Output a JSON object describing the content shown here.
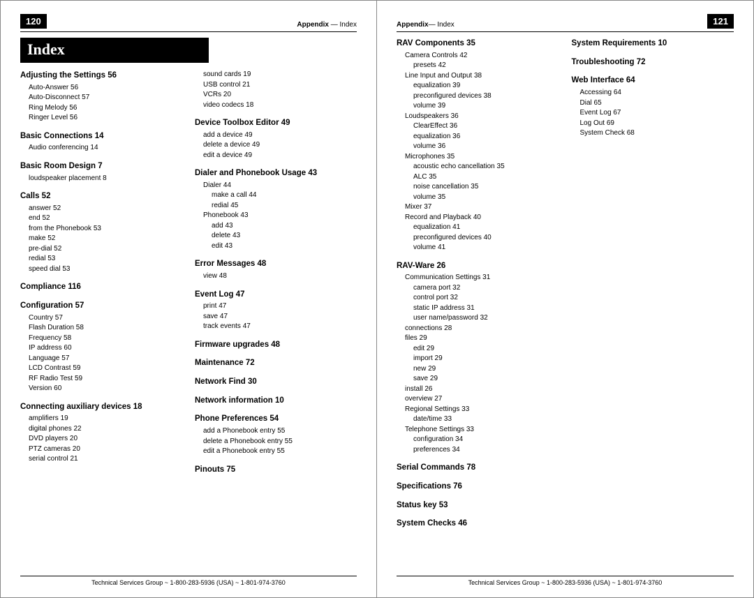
{
  "left": {
    "pageNum": "120",
    "appendix": "Appendix — Index",
    "indexHeader": "Index",
    "col1": [
      {
        "t": "topic",
        "v": "Adjusting the Settings 56"
      },
      {
        "t": "sub",
        "v": "Auto-Answer 56"
      },
      {
        "t": "sub",
        "v": "Auto-Disconnect 57"
      },
      {
        "t": "sub",
        "v": "Ring Melody 56"
      },
      {
        "t": "sub",
        "v": "Ringer Level 56"
      },
      {
        "t": "topic",
        "v": "Basic Connections 14"
      },
      {
        "t": "sub",
        "v": "Audio conferencing 14"
      },
      {
        "t": "topic",
        "v": "Basic Room Design 7"
      },
      {
        "t": "sub",
        "v": "loudspeaker placement 8"
      },
      {
        "t": "topic",
        "v": "Calls 52"
      },
      {
        "t": "sub",
        "v": "answer 52"
      },
      {
        "t": "sub",
        "v": "end 52"
      },
      {
        "t": "sub",
        "v": "from the Phonebook 53"
      },
      {
        "t": "sub",
        "v": "make 52"
      },
      {
        "t": "sub",
        "v": "pre-dial 52"
      },
      {
        "t": "sub",
        "v": "redial 53"
      },
      {
        "t": "sub",
        "v": "speed dial 53"
      },
      {
        "t": "topic",
        "v": "Compliance 116"
      },
      {
        "t": "topic",
        "v": "Configuration 57"
      },
      {
        "t": "sub",
        "v": "Country 57"
      },
      {
        "t": "sub",
        "v": "Flash Duration 58"
      },
      {
        "t": "sub",
        "v": "Frequency 58"
      },
      {
        "t": "sub",
        "v": "IP address 60"
      },
      {
        "t": "sub",
        "v": "Language 57"
      },
      {
        "t": "sub",
        "v": "LCD Contrast 59"
      },
      {
        "t": "sub",
        "v": "RF Radio Test 59"
      },
      {
        "t": "sub",
        "v": "Version 60"
      },
      {
        "t": "topic",
        "v": "Connecting auxiliary devices 18"
      },
      {
        "t": "sub",
        "v": "amplifiers 19"
      },
      {
        "t": "sub",
        "v": "digital phones 22"
      },
      {
        "t": "sub",
        "v": "DVD players 20"
      },
      {
        "t": "sub",
        "v": "PTZ cameras 20"
      },
      {
        "t": "sub",
        "v": "serial control 21"
      }
    ],
    "col2": [
      {
        "t": "sub",
        "v": "sound cards 19"
      },
      {
        "t": "sub",
        "v": "USB control 21"
      },
      {
        "t": "sub",
        "v": "VCRs 20"
      },
      {
        "t": "sub",
        "v": "video codecs 18"
      },
      {
        "t": "topic",
        "v": "Device Toolbox Editor 49"
      },
      {
        "t": "sub",
        "v": "add a device 49"
      },
      {
        "t": "sub",
        "v": "delete a device 49"
      },
      {
        "t": "sub",
        "v": "edit a device 49"
      },
      {
        "t": "topic",
        "v": "Dialer and Phonebook Usage 43"
      },
      {
        "t": "sub",
        "v": "Dialer 44"
      },
      {
        "t": "sub2",
        "v": "make a call 44"
      },
      {
        "t": "sub2",
        "v": "redial 45"
      },
      {
        "t": "sub",
        "v": "Phonebook 43"
      },
      {
        "t": "sub2",
        "v": "add 43"
      },
      {
        "t": "sub2",
        "v": "delete 43"
      },
      {
        "t": "sub2",
        "v": "edit 43"
      },
      {
        "t": "topic",
        "v": "Error Messages 48"
      },
      {
        "t": "sub",
        "v": "view 48"
      },
      {
        "t": "topic",
        "v": "Event Log 47"
      },
      {
        "t": "sub",
        "v": "print 47"
      },
      {
        "t": "sub",
        "v": "save 47"
      },
      {
        "t": "sub",
        "v": "track events 47"
      },
      {
        "t": "topic",
        "v": "Firmware upgrades 48"
      },
      {
        "t": "topic",
        "v": "Maintenance 72"
      },
      {
        "t": "topic",
        "v": "Network Find 30"
      },
      {
        "t": "topic",
        "v": "Network information 10"
      },
      {
        "t": "topic",
        "v": "Phone Preferences 54"
      },
      {
        "t": "sub",
        "v": "add a Phonebook entry 55"
      },
      {
        "t": "sub",
        "v": "delete a Phonebook entry 55"
      },
      {
        "t": "sub",
        "v": "edit a Phonebook entry 55"
      },
      {
        "t": "topic",
        "v": "Pinouts 75"
      }
    ]
  },
  "right": {
    "pageNum": "121",
    "appendix": "Appendix— Index",
    "col1": [
      {
        "t": "topic",
        "v": "RAV Components 35"
      },
      {
        "t": "sub",
        "v": "Camera Controls 42"
      },
      {
        "t": "sub2",
        "v": "presets 42"
      },
      {
        "t": "sub",
        "v": "Line Input and Output 38"
      },
      {
        "t": "sub2",
        "v": "equalization 39"
      },
      {
        "t": "sub2",
        "v": "preconfigured devices 38"
      },
      {
        "t": "sub2",
        "v": "volume 39"
      },
      {
        "t": "sub",
        "v": "Loudspeakers 36"
      },
      {
        "t": "sub2",
        "v": "ClearEffect 36"
      },
      {
        "t": "sub2",
        "v": "equalization 36"
      },
      {
        "t": "sub2",
        "v": "volume 36"
      },
      {
        "t": "sub",
        "v": "Microphones 35"
      },
      {
        "t": "sub2",
        "v": "acoustic echo cancellation 35"
      },
      {
        "t": "sub2",
        "v": "ALC 35"
      },
      {
        "t": "sub2",
        "v": "noise cancellation 35"
      },
      {
        "t": "sub2",
        "v": "volume 35"
      },
      {
        "t": "sub",
        "v": "Mixer 37"
      },
      {
        "t": "sub",
        "v": "Record and Playback 40"
      },
      {
        "t": "sub2",
        "v": "equalization 41"
      },
      {
        "t": "sub2",
        "v": "preconfigured devices 40"
      },
      {
        "t": "sub2",
        "v": "volume 41"
      },
      {
        "t": "topic",
        "v": "RAV-Ware 26"
      },
      {
        "t": "sub",
        "v": "Communication Settings 31"
      },
      {
        "t": "sub2",
        "v": "camera port 32"
      },
      {
        "t": "sub2",
        "v": "control port 32"
      },
      {
        "t": "sub2",
        "v": "static IP address 31"
      },
      {
        "t": "sub2",
        "v": "user name/password 32"
      },
      {
        "t": "sub",
        "v": "connections 28"
      },
      {
        "t": "sub",
        "v": "files 29"
      },
      {
        "t": "sub2",
        "v": "edit 29"
      },
      {
        "t": "sub2",
        "v": "import 29"
      },
      {
        "t": "sub2",
        "v": "new 29"
      },
      {
        "t": "sub2",
        "v": "save 29"
      },
      {
        "t": "sub",
        "v": "install 26"
      },
      {
        "t": "sub",
        "v": "overview 27"
      },
      {
        "t": "sub",
        "v": "Regional Settings 33"
      },
      {
        "t": "sub2",
        "v": "date/time 33"
      },
      {
        "t": "sub",
        "v": "Telephone Settings 33"
      },
      {
        "t": "sub2",
        "v": "configuration 34"
      },
      {
        "t": "sub2",
        "v": "preferences 34"
      },
      {
        "t": "topic",
        "v": "Serial Commands 78"
      },
      {
        "t": "topic",
        "v": "Specifications 76"
      },
      {
        "t": "topic",
        "v": "Status key 53"
      },
      {
        "t": "topic",
        "v": "System Checks 46"
      }
    ],
    "col2": [
      {
        "t": "topic",
        "v": "System Requirements 10"
      },
      {
        "t": "topic",
        "v": "Troubleshooting 72"
      },
      {
        "t": "topic",
        "v": "Web Interface 64"
      },
      {
        "t": "sub",
        "v": "Accessing 64"
      },
      {
        "t": "sub",
        "v": "Dial 65"
      },
      {
        "t": "sub",
        "v": "Event Log 67"
      },
      {
        "t": "sub",
        "v": "Log Out 69"
      },
      {
        "t": "sub",
        "v": "System Check 68"
      }
    ]
  },
  "footer": "Technical Services Group ~ 1-800-283-5936 (USA) ~ 1-801-974-3760"
}
